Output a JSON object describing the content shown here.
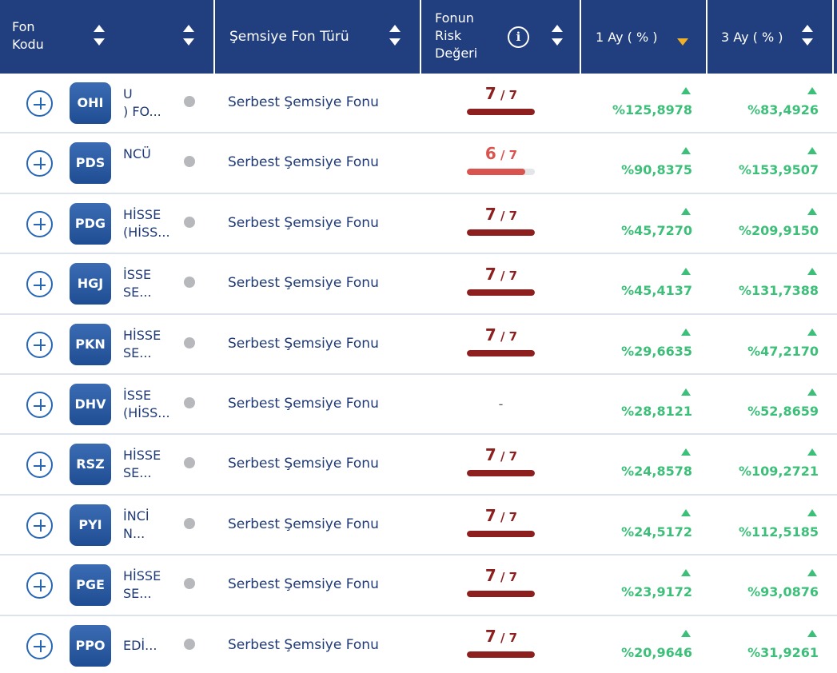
{
  "header": {
    "fon_kodu_line1": "Fon",
    "fon_kodu_line2": "Kodu",
    "semsiye_label": "Şemsiye Fon Türü",
    "risk_line1": "Fonun",
    "risk_line2": "Risk",
    "risk_line3": "Değeri",
    "info_icon_glyph": "i",
    "ay1_label": "1 Ay ( % )",
    "ay3_label": "3 Ay ( % )",
    "active_sort_column": "1 Ay ( % )",
    "active_sort_direction": "descending"
  },
  "colors": {
    "header_bg": "#213e7f",
    "risk_high": "#8d1f1f",
    "risk_mid": "#d9534f",
    "positive": "#3cbf78",
    "sort_active": "#f0b128"
  },
  "rows": [
    {
      "code": "OHI",
      "name_line1": "U",
      "name_line2": ") FO...",
      "type": "Serbest Şemsiye Fonu",
      "risk": "7",
      "risk_max": "/ 7",
      "risk_level": 1.0,
      "ay1": "%125,8978",
      "ay3": "%83,4926"
    },
    {
      "code": "PDS",
      "name_line1": "NCÜ",
      "name_line2": "",
      "type": "Serbest Şemsiye Fonu",
      "risk": "6",
      "risk_max": "/ 7",
      "risk_level": 0.857,
      "ay1": "%90,8375",
      "ay3": "%153,9507"
    },
    {
      "code": "PDG",
      "name_line1": "HİSSE",
      "name_line2": "(HİSS...",
      "type": "Serbest Şemsiye Fonu",
      "risk": "7",
      "risk_max": "/ 7",
      "risk_level": 1.0,
      "ay1": "%45,7270",
      "ay3": "%209,9150"
    },
    {
      "code": "HGJ",
      "name_line1": "İSSE",
      "name_line2": "SE...",
      "type": "Serbest Şemsiye Fonu",
      "risk": "7",
      "risk_max": "/ 7",
      "risk_level": 1.0,
      "ay1": "%45,4137",
      "ay3": "%131,7388"
    },
    {
      "code": "PKN",
      "name_line1": "HİSSE",
      "name_line2": "SE...",
      "type": "Serbest Şemsiye Fonu",
      "risk": "7",
      "risk_max": "/ 7",
      "risk_level": 1.0,
      "ay1": "%29,6635",
      "ay3": "%47,2170"
    },
    {
      "code": "DHV",
      "name_line1": "İSSE",
      "name_line2": "(HİSS...",
      "type": "Serbest Şemsiye Fonu",
      "risk": "-",
      "risk_max": "",
      "risk_level": null,
      "ay1": "%28,8121",
      "ay3": "%52,8659"
    },
    {
      "code": "RSZ",
      "name_line1": "HİSSE",
      "name_line2": "SE...",
      "type": "Serbest Şemsiye Fonu",
      "risk": "7",
      "risk_max": "/ 7",
      "risk_level": 1.0,
      "ay1": "%24,8578",
      "ay3": "%109,2721"
    },
    {
      "code": "PYI",
      "name_line1": "İNCİ",
      "name_line2": "N...",
      "type": "Serbest Şemsiye Fonu",
      "risk": "7",
      "risk_max": "/ 7",
      "risk_level": 1.0,
      "ay1": "%24,5172",
      "ay3": "%112,5185"
    },
    {
      "code": "PGE",
      "name_line1": "HİSSE",
      "name_line2": "SE...",
      "type": "Serbest Şemsiye Fonu",
      "risk": "7",
      "risk_max": "/ 7",
      "risk_level": 1.0,
      "ay1": "%23,9172",
      "ay3": "%93,0876"
    },
    {
      "code": "PPO",
      "name_line1": "",
      "name_line2": "EDİ...",
      "type": "Serbest Şemsiye Fonu",
      "risk": "7",
      "risk_max": "/ 7",
      "risk_level": 1.0,
      "ay1": "%20,9646",
      "ay3": "%31,9261"
    }
  ]
}
